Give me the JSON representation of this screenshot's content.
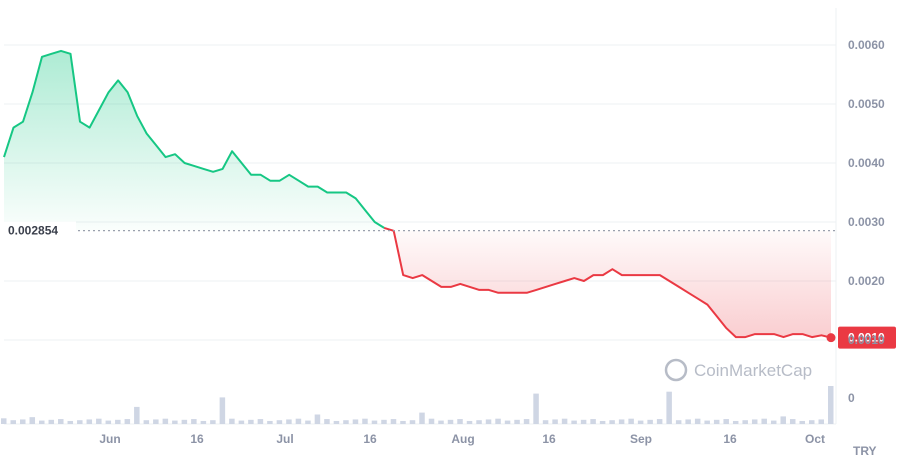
{
  "chart_data": {
    "type": "area",
    "currency": "TRY",
    "y_ticks": [
      "0.0060",
      "0.0050",
      "0.0040",
      "0.0030",
      "0.0020",
      "0.0010",
      "0"
    ],
    "x_ticks": [
      "Jun",
      "16",
      "Jul",
      "16",
      "Aug",
      "16",
      "Sep",
      "16",
      "Oct"
    ],
    "ylim": [
      0,
      0.0068
    ],
    "reference_value": 0.002854,
    "reference_label": "0.002854",
    "current_price": 0.00104,
    "current_price_label": "0.0010",
    "watermark": "CoinMarketCap",
    "colors": {
      "up": "#16c784",
      "down": "#ea3943",
      "grid": "#eef0f3",
      "text": "#8c93a6",
      "volume": "#cfd6e4"
    },
    "series": [
      {
        "values": [
          [
            0,
            0.0041
          ],
          [
            1,
            0.0046
          ],
          [
            2,
            0.0047
          ],
          [
            3,
            0.0052
          ],
          [
            4,
            0.0058
          ],
          [
            5,
            0.00585
          ],
          [
            6,
            0.0059
          ],
          [
            7,
            0.00585
          ],
          [
            8,
            0.0047
          ],
          [
            9,
            0.0046
          ],
          [
            10,
            0.0049
          ],
          [
            11,
            0.0052
          ],
          [
            12,
            0.0054
          ],
          [
            13,
            0.0052
          ],
          [
            14,
            0.0048
          ],
          [
            15,
            0.0045
          ],
          [
            16,
            0.0043
          ],
          [
            17,
            0.0041
          ],
          [
            18,
            0.00415
          ],
          [
            19,
            0.004
          ],
          [
            20,
            0.00395
          ],
          [
            21,
            0.0039
          ],
          [
            22,
            0.00385
          ],
          [
            23,
            0.0039
          ],
          [
            24,
            0.0042
          ],
          [
            25,
            0.004
          ],
          [
            26,
            0.0038
          ],
          [
            27,
            0.0038
          ],
          [
            28,
            0.0037
          ],
          [
            29,
            0.0037
          ],
          [
            30,
            0.0038
          ],
          [
            31,
            0.0037
          ],
          [
            32,
            0.0036
          ],
          [
            33,
            0.0036
          ],
          [
            34,
            0.0035
          ],
          [
            35,
            0.0035
          ],
          [
            36,
            0.0035
          ],
          [
            37,
            0.0034
          ],
          [
            38,
            0.0032
          ],
          [
            39,
            0.003
          ],
          [
            40,
            0.0029
          ],
          [
            41,
            0.00285
          ],
          [
            42,
            0.0021
          ],
          [
            43,
            0.00205
          ],
          [
            44,
            0.0021
          ],
          [
            45,
            0.002
          ],
          [
            46,
            0.0019
          ],
          [
            47,
            0.0019
          ],
          [
            48,
            0.00195
          ],
          [
            49,
            0.0019
          ],
          [
            50,
            0.00185
          ],
          [
            51,
            0.00185
          ],
          [
            52,
            0.0018
          ],
          [
            53,
            0.0018
          ],
          [
            54,
            0.0018
          ],
          [
            55,
            0.0018
          ],
          [
            56,
            0.00185
          ],
          [
            57,
            0.0019
          ],
          [
            58,
            0.00195
          ],
          [
            59,
            0.002
          ],
          [
            60,
            0.00205
          ],
          [
            61,
            0.002
          ],
          [
            62,
            0.0021
          ],
          [
            63,
            0.0021
          ],
          [
            64,
            0.0022
          ],
          [
            65,
            0.0021
          ],
          [
            66,
            0.0021
          ],
          [
            67,
            0.0021
          ],
          [
            68,
            0.0021
          ],
          [
            69,
            0.0021
          ],
          [
            70,
            0.002
          ],
          [
            71,
            0.0019
          ],
          [
            72,
            0.0018
          ],
          [
            73,
            0.0017
          ],
          [
            74,
            0.0016
          ],
          [
            75,
            0.0014
          ],
          [
            76,
            0.0012
          ],
          [
            77,
            0.00105
          ],
          [
            78,
            0.00105
          ],
          [
            79,
            0.0011
          ],
          [
            80,
            0.0011
          ],
          [
            81,
            0.0011
          ],
          [
            82,
            0.00105
          ],
          [
            83,
            0.0011
          ],
          [
            84,
            0.0011
          ],
          [
            85,
            0.00105
          ],
          [
            86,
            0.00108
          ],
          [
            87,
            0.00104
          ]
        ]
      }
    ],
    "volume_peaks": [
      [
        0,
        0.15
      ],
      [
        3,
        0.18
      ],
      [
        14,
        0.45
      ],
      [
        23,
        0.7
      ],
      [
        33,
        0.25
      ],
      [
        44,
        0.3
      ],
      [
        56,
        0.8
      ],
      [
        70,
        0.85
      ],
      [
        82,
        0.2
      ],
      [
        87,
        1.0
      ]
    ]
  }
}
